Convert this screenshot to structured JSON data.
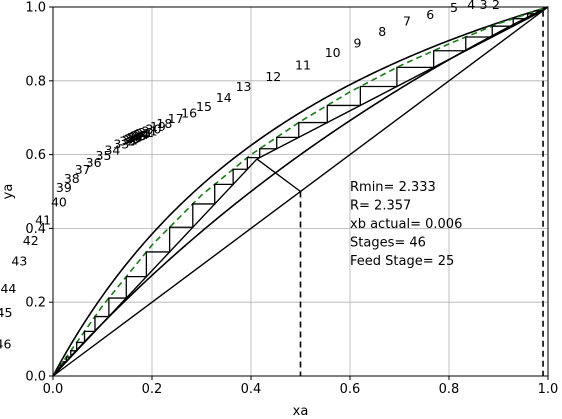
{
  "chart_data": {
    "type": "line",
    "title": "",
    "xlabel": "xa",
    "ylabel": "ya",
    "xlim": [
      0.0,
      1.0
    ],
    "ylim": [
      0.0,
      1.0
    ],
    "grid": true,
    "xticks": [
      "0.0",
      "0.2",
      "0.4",
      "0.6",
      "0.8",
      "1.0"
    ],
    "yticks": [
      "0.0",
      "0.2",
      "0.4",
      "0.6",
      "0.8",
      "1.0"
    ],
    "relative_volatility_curves": [
      2.5,
      1.5
    ],
    "q_line_start": [
      0.5,
      0.5
    ],
    "q_line_end": [
      0.412,
      0.588
    ],
    "xd": 0.99,
    "xf": 0.5,
    "series": [
      {
        "values": "equilibrium curve (solid)",
        "x": [
          0,
          0.02,
          0.05,
          0.1,
          0.15,
          0.2,
          0.3,
          0.4,
          0.5,
          0.6,
          0.7,
          0.8,
          0.9,
          1.0
        ],
        "y": [
          0,
          0.049,
          0.116,
          0.217,
          0.306,
          0.385,
          0.517,
          0.625,
          0.714,
          0.789,
          0.854,
          0.909,
          0.957,
          1.0
        ]
      },
      {
        "values": "equilibrium curve 2 (solid)",
        "x": [
          0,
          0.1,
          0.2,
          0.3,
          0.4,
          0.5,
          0.6,
          0.7,
          0.8,
          0.9,
          1.0
        ],
        "y": [
          0,
          0.143,
          0.273,
          0.391,
          0.5,
          0.6,
          0.692,
          0.778,
          0.857,
          0.931,
          1.0
        ]
      },
      {
        "values": "equilibrium curve (dashed)",
        "x": [
          0,
          0.1,
          0.2,
          0.3,
          0.4,
          0.5,
          0.6,
          0.7,
          0.8,
          0.9,
          1.0
        ],
        "y": [
          0,
          0.19,
          0.355,
          0.49,
          0.6,
          0.69,
          0.77,
          0.84,
          0.9,
          0.955,
          1.0
        ]
      }
    ],
    "annotations": {
      "rmin": "Rmin= 2.333",
      "r": "R= 2.357",
      "xb": "xb actual= 0.006",
      "stages": "Stages= 46",
      "feed": "Feed Stage= 25"
    },
    "stage_labels": [
      "2",
      "3",
      "4",
      "5",
      "6",
      "7",
      "8",
      "9",
      "10",
      "11",
      "12",
      "13",
      "14",
      "15",
      "16",
      "17",
      "18",
      "19",
      "20",
      "21",
      "22",
      "23",
      "24",
      "25",
      "26",
      "27",
      "28",
      "29",
      "30",
      "31",
      "32",
      "33",
      "34",
      "35",
      "36",
      "37",
      "38",
      "39",
      "40",
      "41",
      "42",
      "43",
      "44",
      "45",
      "46"
    ],
    "total_stages": 46,
    "feed_stage": 25,
    "xb": 0.006
  }
}
